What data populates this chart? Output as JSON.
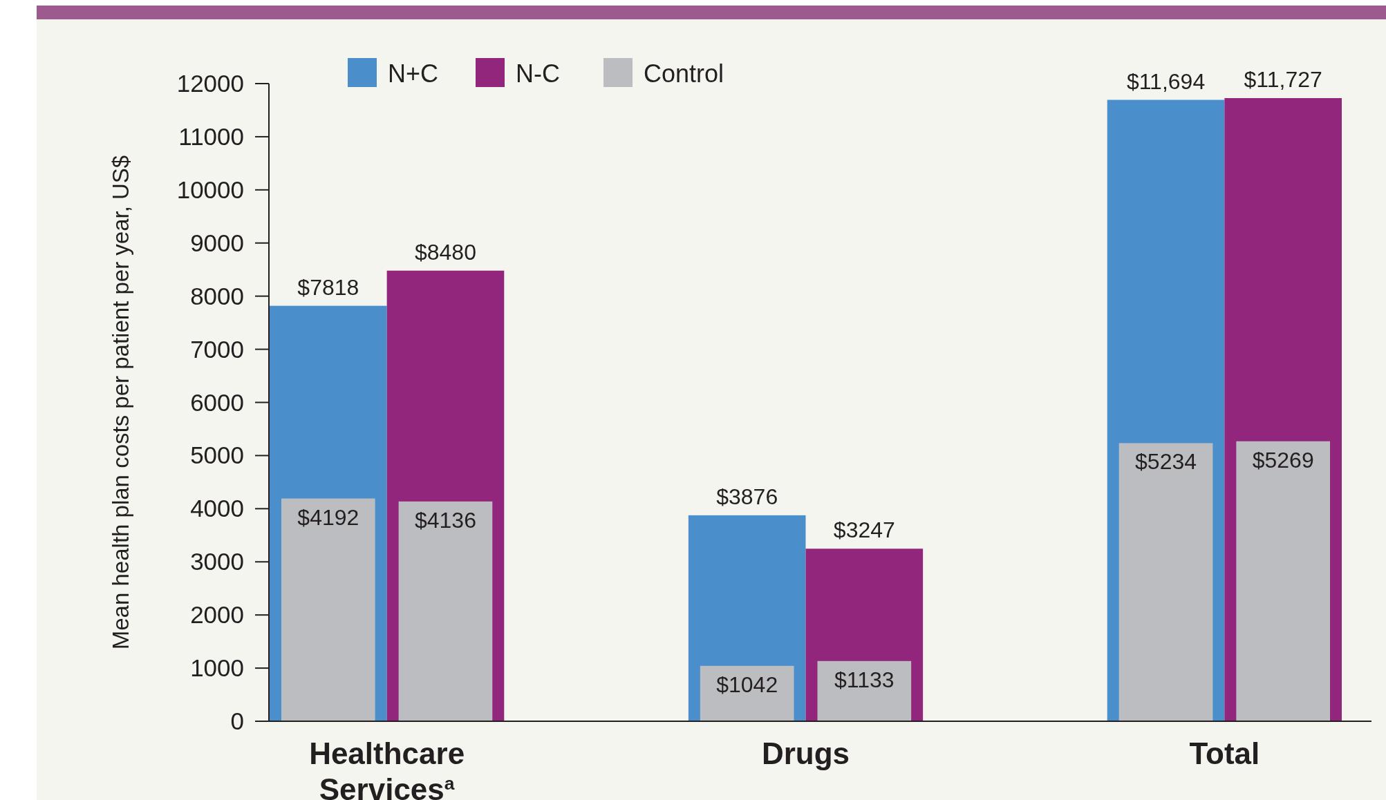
{
  "chart_data": {
    "type": "bar",
    "ylabel": "Mean health plan costs per patient per year, US$",
    "categories": [
      "Healthcare Services$^{a}$",
      "Drugs",
      "Total"
    ],
    "series": [
      {
        "name": "N+C",
        "color": "#4a8fcc",
        "values": [
          7818,
          3876,
          11694
        ],
        "value_labels": [
          "$7818",
          "$3876",
          "$11,694"
        ]
      },
      {
        "name": "N-C",
        "color": "#92267c",
        "values": [
          8480,
          3247,
          11727
        ],
        "value_labels": [
          "$8480",
          "$3247",
          "$11,727"
        ]
      },
      {
        "name": "Control",
        "color": "#bcbdc1",
        "values": [
          4192,
          1042,
          5234
        ],
        "value_labels": [
          "$4192",
          "$1042",
          "$5234"
        ]
      },
      {
        "color": "#bcbdc1",
        "values": [
          4136,
          1133,
          5269
        ],
        "value_labels": [
          "$4136",
          "$1133",
          "$5269"
        ]
      }
    ],
    "ylim": [
      0,
      12000
    ],
    "yticks": [
      0,
      1000,
      2000,
      3000,
      4000,
      5000,
      6000,
      7000,
      8000,
      9000,
      10000,
      11000,
      12000
    ],
    "grid": false,
    "legend": "top left"
  }
}
